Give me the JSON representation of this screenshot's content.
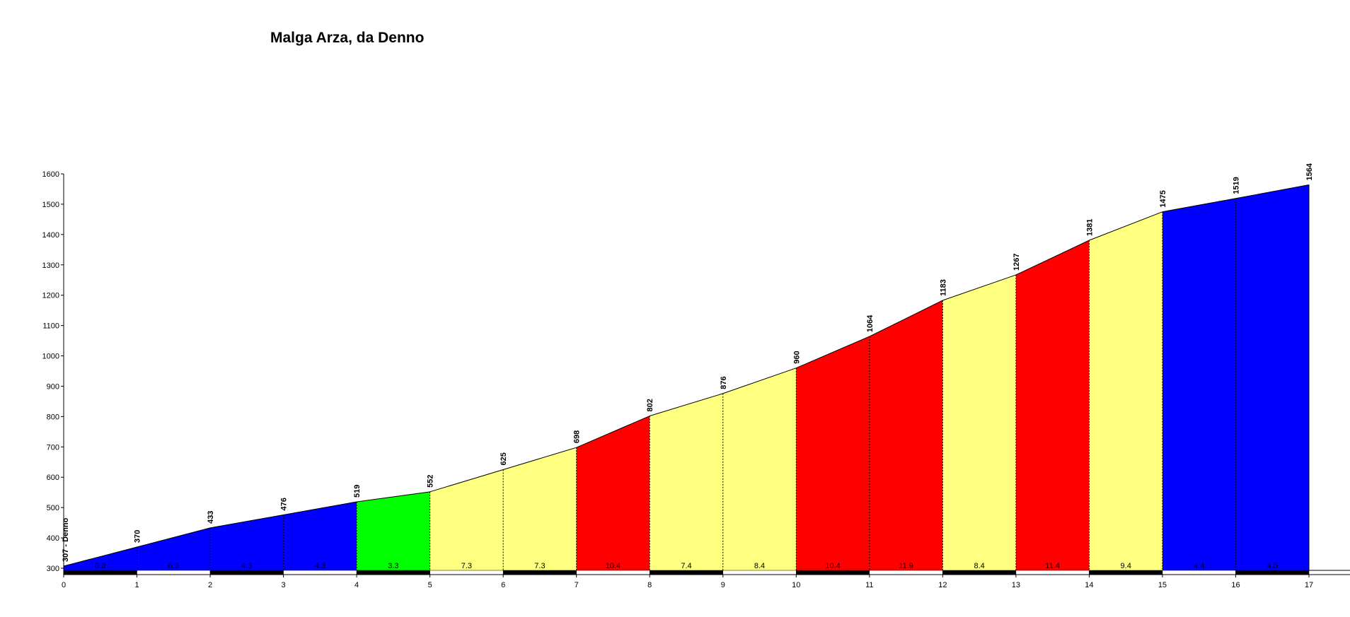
{
  "chart_data": {
    "type": "area",
    "title": "Malga Arza, da Denno",
    "xlabel": "",
    "ylabel": "",
    "xlim": [
      0,
      17
    ],
    "ylim": [
      300,
      1600
    ],
    "x_ticks": [
      "0",
      "1",
      "2",
      "3",
      "4",
      "5",
      "6",
      "7",
      "8",
      "9",
      "10",
      "11",
      "12",
      "13",
      "14",
      "15",
      "16",
      "17"
    ],
    "y_ticks": [
      "300",
      "400",
      "500",
      "600",
      "700",
      "800",
      "900",
      "1000",
      "1100",
      "1200",
      "1300",
      "1400",
      "1500",
      "1600"
    ],
    "start_label": "307 - Denno",
    "km": [
      0,
      1,
      2,
      3,
      4,
      5,
      6,
      7,
      8,
      9,
      10,
      11,
      12,
      13,
      14,
      15,
      16,
      17
    ],
    "elevations": [
      307,
      370,
      433,
      476,
      519,
      552,
      625,
      698,
      802,
      876,
      960,
      1064,
      1183,
      1267,
      1381,
      1475,
      1519,
      1564
    ],
    "elevation_labels": [
      "370",
      "433",
      "476",
      "519",
      "552",
      "625",
      "698",
      "802",
      "876",
      "960",
      "1064",
      "1183",
      "1267",
      "1381",
      "1475",
      "1519",
      "1564"
    ],
    "gradients": [
      "6.3",
      "6.3",
      "4.3",
      "4.3",
      "3.3",
      "7.3",
      "7.3",
      "10.4",
      "7.4",
      "8.4",
      "10.4",
      "11.9",
      "8.4",
      "11.4",
      "9.4",
      "4.4",
      "4.5"
    ],
    "gradient_color_scale": {
      "low": "#0000ff",
      "easy": "#00ff00",
      "moderate": "#ffff80",
      "steep": "#ff0000"
    }
  }
}
